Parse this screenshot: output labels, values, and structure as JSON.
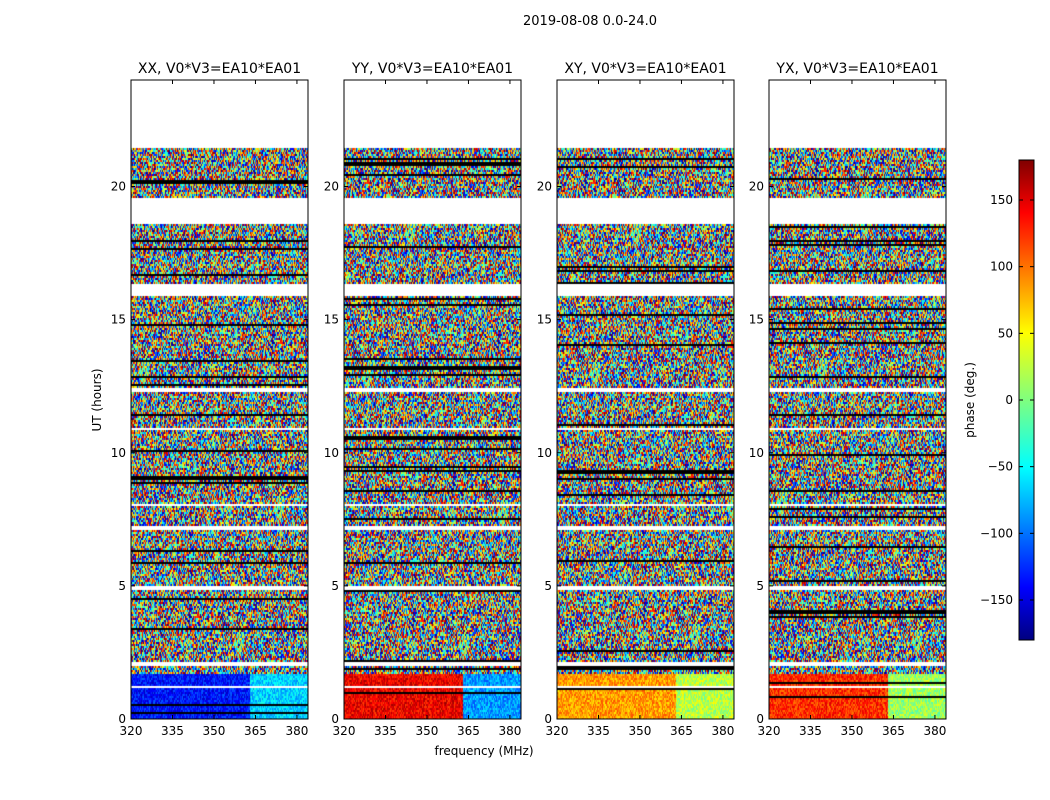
{
  "suptitle": "2019-08-08 0.0-24.0",
  "chart_data": {
    "type": "heatmap",
    "xlabel": "frequency (MHz)",
    "ylabel": "UT (hours)",
    "xlim": [
      320,
      384
    ],
    "ylim": [
      0,
      24
    ],
    "xticks": [
      "320",
      "335",
      "350",
      "365",
      "380"
    ],
    "yticks": [
      "0",
      "5",
      "10",
      "15",
      "20"
    ],
    "colorbar": {
      "label": "phase (deg.)",
      "range": [
        -180,
        180
      ],
      "ticks": [
        "150",
        "100",
        "50",
        "0",
        "−50",
        "−100",
        "−150"
      ],
      "colormap": "jet"
    },
    "panels": [
      {
        "title": "XX, V0*V3=EA10*EA01",
        "low_band_phase_deg": -130,
        "low_band_phase_above_363_deg": -60
      },
      {
        "title": "YY, V0*V3=EA10*EA01",
        "low_band_phase_deg": 140,
        "low_band_phase_above_363_deg": -80
      },
      {
        "title": "XY, V0*V3=EA10*EA01",
        "low_band_phase_deg": 80,
        "low_band_phase_above_363_deg": 20
      },
      {
        "title": "YX, V0*V3=EA10*EA01",
        "low_band_phase_deg": 120,
        "low_band_phase_above_363_deg": 10
      }
    ],
    "flagged_ut_ranges_hours": [
      [
        21.5,
        24.0
      ],
      [
        18.6,
        19.6
      ],
      [
        15.9,
        16.4
      ],
      [
        12.3,
        12.5
      ],
      [
        10.9,
        11.0
      ],
      [
        8.05,
        8.15
      ],
      [
        7.1,
        7.3
      ],
      [
        4.9,
        5.0
      ],
      [
        2.0,
        2.2
      ],
      [
        1.7,
        1.75
      ],
      [
        1.2,
        1.25
      ]
    ]
  }
}
